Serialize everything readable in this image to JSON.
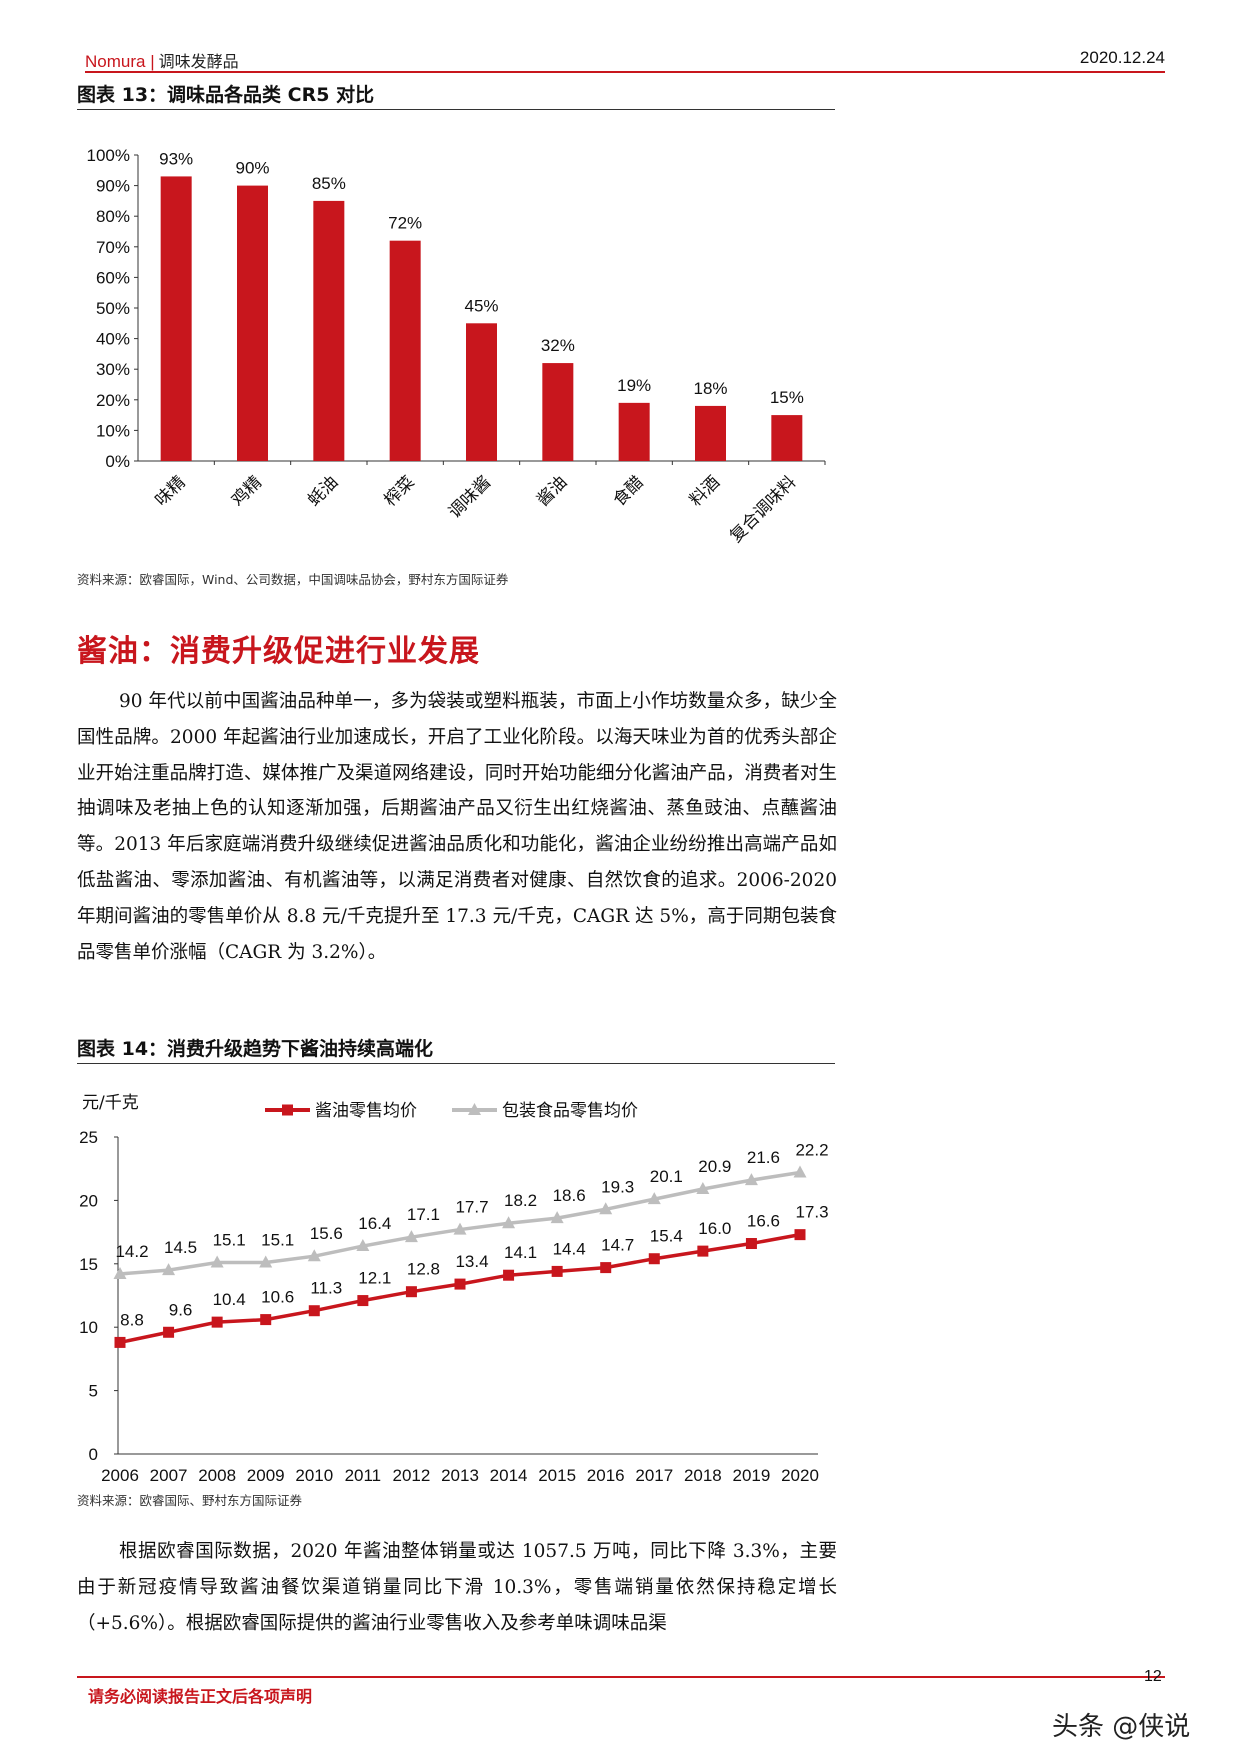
{
  "header": {
    "brand": "Nomura",
    "separator": "|",
    "category": "调味发酵品",
    "date": "2020.12.24"
  },
  "figure13": {
    "title": "图表 13：调味品各品类 CR5 对比",
    "source": "资料来源：欧睿国际，Wind、公司数据，中国调味品协会，野村东方国际证券"
  },
  "section": {
    "heading": "酱油：消费升级促进行业发展"
  },
  "paragraph1": "90 年代以前中国酱油品种单一，多为袋装或塑料瓶装，市面上小作坊数量众多，缺少全国性品牌。2000 年起酱油行业加速成长，开启了工业化阶段。以海天味业为首的优秀头部企业开始注重品牌打造、媒体推广及渠道网络建设，同时开始功能细分化酱油产品，消费者对生抽调味及老抽上色的认知逐渐加强，后期酱油产品又衍生出红烧酱油、蒸鱼豉油、点蘸酱油等。2013 年后家庭端消费升级继续促进酱油品质化和功能化，酱油企业纷纷推出高端产品如低盐酱油、零添加酱油、有机酱油等，以满足消费者对健康、自然饮食的追求。2006-2020 年期间酱油的零售单价从 8.8 元/千克提升至 17.3 元/千克，CAGR 达 5%，高于同期包装食品零售单价涨幅（CAGR 为 3.2%）。",
  "figure14": {
    "title": "图表 14：消费升级趋势下酱油持续高端化",
    "source": "资料来源：欧睿国际、野村东方国际证券"
  },
  "paragraph2": "根据欧睿国际数据，2020 年酱油整体销量或达 1057.5 万吨，同比下降 3.3%，主要由于新冠疫情导致酱油餐饮渠道销量同比下滑 10.3%，零售端销量依然保持稳定增长（+5.6%）。根据欧睿国际提供的酱油行业零售收入及参考单味调味品渠",
  "footer": {
    "disclaimer": "请务必阅读报告正文后各项声明",
    "page": "12",
    "watermark": "头条 @侠说"
  },
  "chart_data": [
    {
      "type": "bar",
      "title": "图表 13：调味品各品类 CR5 对比",
      "categories": [
        "味精",
        "鸡精",
        "蚝油",
        "榨菜",
        "调味酱",
        "酱油",
        "食醋",
        "料酒",
        "复合调味料"
      ],
      "values": [
        93,
        90,
        85,
        72,
        45,
        32,
        19,
        18,
        15
      ],
      "value_labels": [
        "93%",
        "90%",
        "85%",
        "72%",
        "45%",
        "32%",
        "19%",
        "18%",
        "15%"
      ],
      "ylim": [
        0,
        100
      ],
      "yticks": [
        "0%",
        "10%",
        "20%",
        "30%",
        "40%",
        "50%",
        "60%",
        "70%",
        "80%",
        "90%",
        "100%"
      ],
      "bar_color": "#c8161d",
      "grid": false
    },
    {
      "type": "line",
      "title": "图表 14：消费升级趋势下酱油持续高端化",
      "ylabel": "元/千克",
      "x": [
        "2006",
        "2007",
        "2008",
        "2009",
        "2010",
        "2011",
        "2012",
        "2013",
        "2014",
        "2015",
        "2016",
        "2017",
        "2018",
        "2019",
        "2020"
      ],
      "series": [
        {
          "name": "酱油零售均价",
          "color": "#c8161d",
          "marker": "square",
          "values": [
            8.8,
            9.6,
            10.4,
            10.6,
            11.3,
            12.1,
            12.8,
            13.4,
            14.1,
            14.4,
            14.7,
            15.4,
            16.0,
            16.6,
            17.3
          ],
          "labels": [
            "8.8",
            "9.6",
            "10.4",
            "10.6",
            "11.3",
            "12.1",
            "12.8",
            "13.4",
            "14.1",
            "14.4",
            "14.7",
            "15.4",
            "16.0",
            "16.6",
            "17.3"
          ]
        },
        {
          "name": "包装食品零售均价",
          "color": "#bdbdbd",
          "marker": "triangle",
          "values": [
            14.2,
            14.5,
            15.1,
            15.1,
            15.6,
            16.4,
            17.1,
            17.7,
            18.2,
            18.6,
            19.3,
            20.1,
            20.9,
            21.6,
            22.2
          ],
          "labels": [
            "14.2",
            "14.5",
            "15.1",
            "15.1",
            "15.6",
            "16.4",
            "17.1",
            "17.7",
            "18.2",
            "18.6",
            "19.3",
            "20.1",
            "20.9",
            "21.6",
            "22.2"
          ]
        }
      ],
      "ylim": [
        0,
        25
      ],
      "yticks": [
        "0",
        "5",
        "10",
        "15",
        "20",
        "25"
      ],
      "legend": "top",
      "grid": false
    }
  ]
}
